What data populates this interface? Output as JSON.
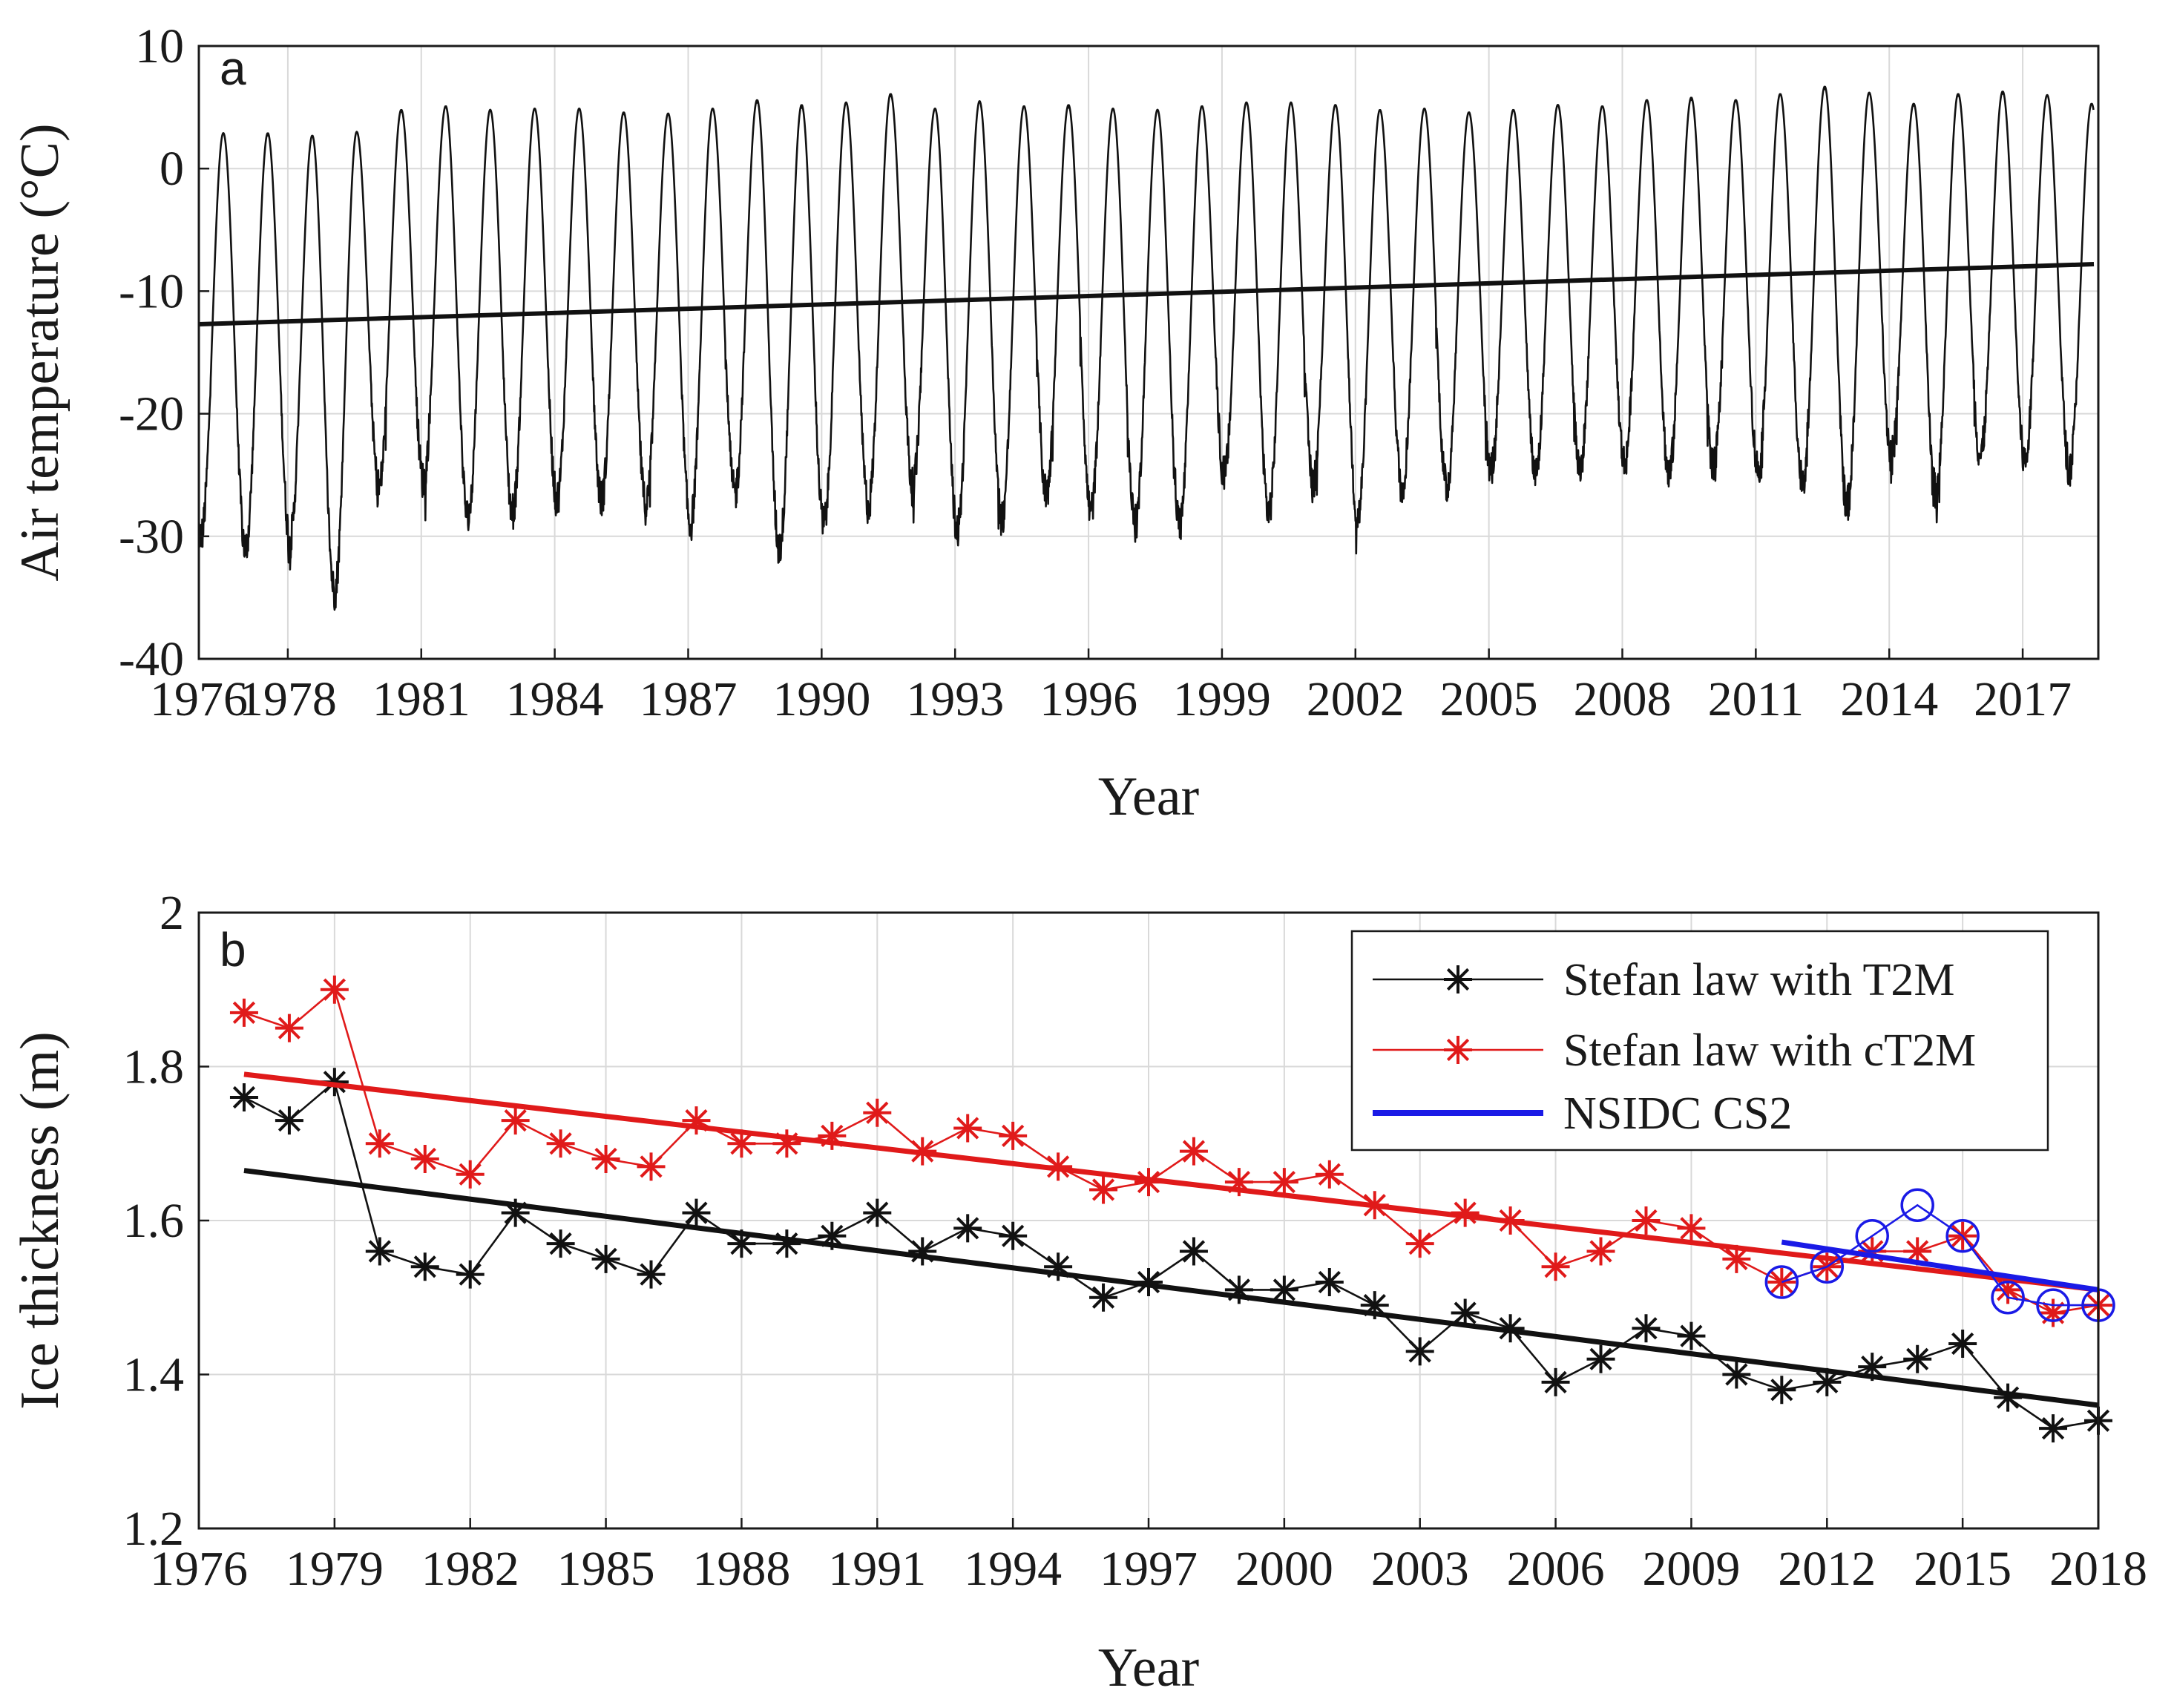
{
  "chart_data": [
    {
      "panel": "a",
      "type": "line",
      "title": "",
      "xlabel": "Year",
      "ylabel": "Air temperature (°C)",
      "xlim": [
        1976,
        2018.7
      ],
      "ylim": [
        -40,
        10
      ],
      "x_ticks": [
        "1976",
        "1978",
        "1981",
        "1984",
        "1987",
        "1990",
        "1993",
        "1996",
        "1999",
        "2002",
        "2005",
        "2008",
        "2011",
        "2014",
        "2017"
      ],
      "y_ticks": [
        "10",
        "0",
        "-10",
        "-20",
        "-30",
        "-40"
      ],
      "grid": true,
      "series": [
        {
          "role": "daily air temperature",
          "color": "#111111",
          "annual_summer_max": [
            2.9,
            2.9,
            2.7,
            3.0,
            4.8,
            5.1,
            4.8,
            4.9,
            4.9,
            4.6,
            4.5,
            4.9,
            5.6,
            5.2,
            5.4,
            6.1,
            4.9,
            5.5,
            5.1,
            5.2,
            4.9,
            4.8,
            5.1,
            5.4,
            5.4,
            5.2,
            4.8,
            4.9,
            4.6,
            4.8,
            5.2,
            5.1,
            5.6,
            5.8,
            5.6,
            6.1,
            6.7,
            6.2,
            5.3,
            6.1,
            6.3,
            6.0,
            5.3
          ],
          "annual_winter_min": [
            -30.0,
            -31.0,
            -30.3,
            -34.5,
            -26.0,
            -25.5,
            -28.5,
            -28.0,
            -27.0,
            -27.0,
            -27.5,
            -29.0,
            -26.5,
            -31.0,
            -29.0,
            -27.5,
            -26.0,
            -29.5,
            -28.5,
            -26.5,
            -28.0,
            -29.0,
            -29.0,
            -25.0,
            -28.0,
            -25.5,
            -28.5,
            -26.0,
            -26.0,
            -24.5,
            -25.0,
            -24.5,
            -24.0,
            -25.0,
            -24.5,
            -24.5,
            -25.5,
            -27.5,
            -23.5,
            -26.5,
            -23.5,
            -24.0,
            -24.5
          ]
        },
        {
          "role": "linear trend",
          "color": "#111111",
          "x": [
            1976,
            2018.6
          ],
          "y": [
            -12.7,
            -7.8
          ]
        }
      ]
    },
    {
      "panel": "b",
      "type": "line",
      "title": "",
      "xlabel": "Year",
      "ylabel": "Ice thickness (m)",
      "xlim": [
        1976,
        2018
      ],
      "ylim": [
        1.2,
        2.0
      ],
      "x_ticks": [
        "1976",
        "1979",
        "1982",
        "1985",
        "1988",
        "1991",
        "1994",
        "1997",
        "2000",
        "2003",
        "2006",
        "2009",
        "2012",
        "2015",
        "2018"
      ],
      "y_ticks": [
        "2",
        "1.8",
        "1.6",
        "1.4",
        "1.2"
      ],
      "grid": true,
      "legend_position": "top-right",
      "x": [
        1977,
        1978,
        1979,
        1980,
        1981,
        1982,
        1983,
        1984,
        1985,
        1986,
        1987,
        1988,
        1989,
        1990,
        1991,
        1992,
        1993,
        1994,
        1995,
        1996,
        1997,
        1998,
        1999,
        2000,
        2001,
        2002,
        2003,
        2004,
        2005,
        2006,
        2007,
        2008,
        2009,
        2010,
        2011,
        2012,
        2013,
        2014,
        2015,
        2016,
        2017,
        2018
      ],
      "series": [
        {
          "name": "Stefan law with T2M",
          "color": "#111111",
          "marker": "asterisk",
          "values": [
            1.76,
            1.73,
            1.78,
            1.56,
            1.54,
            1.53,
            1.61,
            1.57,
            1.55,
            1.53,
            1.61,
            1.57,
            1.57,
            1.58,
            1.61,
            1.56,
            1.59,
            1.58,
            1.54,
            1.5,
            1.52,
            1.56,
            1.51,
            1.51,
            1.52,
            1.49,
            1.43,
            1.48,
            1.46,
            1.39,
            1.42,
            1.46,
            1.45,
            1.4,
            1.38,
            1.39,
            1.41,
            1.42,
            1.44,
            1.37,
            1.33,
            1.34
          ],
          "trend": {
            "x": [
              1977,
              2018
            ],
            "y": [
              1.665,
              1.36
            ]
          }
        },
        {
          "name": "Stefan law with cT2M",
          "color": "#e01a1a",
          "marker": "asterisk",
          "values": [
            1.87,
            1.85,
            1.9,
            1.7,
            1.68,
            1.66,
            1.73,
            1.7,
            1.68,
            1.67,
            1.73,
            1.7,
            1.7,
            1.71,
            1.74,
            1.69,
            1.72,
            1.71,
            1.67,
            1.64,
            1.65,
            1.69,
            1.65,
            1.65,
            1.66,
            1.62,
            1.57,
            1.61,
            1.6,
            1.54,
            1.56,
            1.6,
            1.59,
            1.55,
            1.52,
            1.54,
            1.56,
            1.56,
            1.58,
            1.51,
            1.48,
            1.49
          ],
          "trend": {
            "x": [
              1977,
              2018
            ],
            "y": [
              1.79,
              1.51
            ]
          }
        },
        {
          "name": "NSIDC CS2",
          "color": "#1a1ae6",
          "marker": "circle",
          "x": [
            2011,
            2012,
            2013,
            2014,
            2015,
            2016,
            2017,
            2018
          ],
          "values": [
            1.52,
            1.54,
            1.58,
            1.62,
            1.58,
            1.5,
            1.49,
            1.49
          ],
          "trend": {
            "x": [
              2011,
              2018
            ],
            "y": [
              1.572,
              1.51
            ]
          }
        }
      ]
    }
  ],
  "panel_a": {
    "letter": "a"
  },
  "panel_b": {
    "letter": "b"
  },
  "legend_b": {
    "items": [
      "Stefan law with T2M",
      "Stefan law with cT2M",
      "NSIDC CS2"
    ]
  }
}
